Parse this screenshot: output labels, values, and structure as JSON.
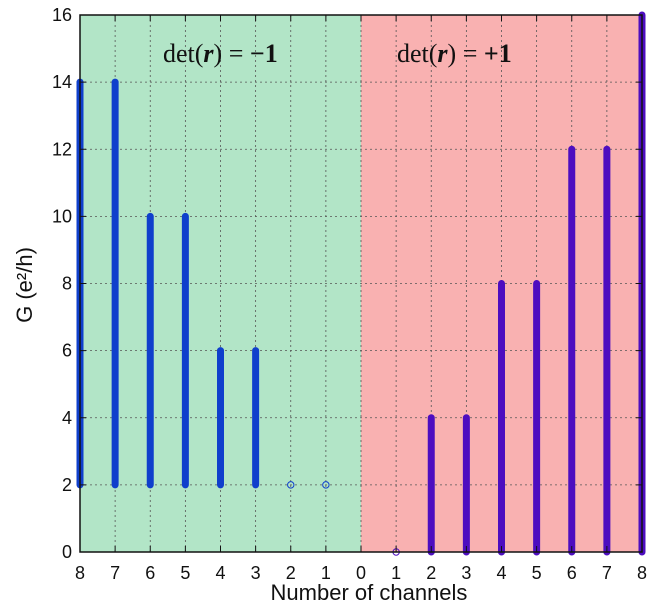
{
  "chart_data": {
    "type": "bar",
    "xlabel": "Number of channels",
    "ylabel": "G (e²/h)",
    "ylim": [
      0,
      16
    ],
    "yticks": [
      0,
      2,
      4,
      6,
      8,
      10,
      12,
      14,
      16
    ],
    "x_tick_labels": [
      "8",
      "7",
      "6",
      "5",
      "4",
      "3",
      "2",
      "1",
      "0",
      "1",
      "2",
      "3",
      "4",
      "5",
      "6",
      "7",
      "8"
    ],
    "grid": true,
    "regions": [
      {
        "label_prefix": "det(",
        "label_var": "r",
        "label_suffix": ") = ",
        "label_value": "−1",
        "color": "#b2e5c7",
        "bar_color": "#0f3fcc",
        "x_range": [
          8,
          0
        ],
        "bars": [
          {
            "channels": 8,
            "min": 2,
            "max": 14
          },
          {
            "channels": 7,
            "min": 2,
            "max": 14
          },
          {
            "channels": 6,
            "min": 2,
            "max": 10
          },
          {
            "channels": 5,
            "min": 2,
            "max": 10
          },
          {
            "channels": 4,
            "min": 2,
            "max": 6
          },
          {
            "channels": 3,
            "min": 2,
            "max": 6
          }
        ],
        "points": [
          {
            "channels": 2,
            "value": 2
          },
          {
            "channels": 1,
            "value": 2
          }
        ]
      },
      {
        "label_prefix": "det(",
        "label_var": "r",
        "label_suffix": ") = ",
        "label_value": "+1",
        "color": "#f9b1b1",
        "bar_color": "#4d0dc0",
        "x_range": [
          0,
          8
        ],
        "bars": [
          {
            "channels": 2,
            "min": 0,
            "max": 4
          },
          {
            "channels": 3,
            "min": 0,
            "max": 4
          },
          {
            "channels": 4,
            "min": 0,
            "max": 8
          },
          {
            "channels": 5,
            "min": 0,
            "max": 8
          },
          {
            "channels": 6,
            "min": 0,
            "max": 12
          },
          {
            "channels": 7,
            "min": 0,
            "max": 12
          },
          {
            "channels": 8,
            "min": 0,
            "max": 16
          }
        ],
        "points": [
          {
            "channels": 1,
            "value": 0
          }
        ]
      }
    ]
  }
}
